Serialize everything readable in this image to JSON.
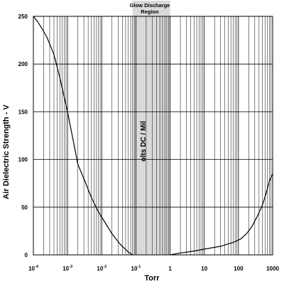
{
  "chart_data": {
    "type": "line",
    "xscale": "log",
    "xlim": [
      0.0001,
      1000
    ],
    "ylim": [
      0,
      250
    ],
    "grid": true,
    "xlabel": "Torr",
    "ylabel": "Air Dielectric Strength - V",
    "inner_label": "olts DC / Mil",
    "shaded_region": {
      "label_line1": "Glow Discharge",
      "label_line2": "Region",
      "x_range": [
        0.08,
        1
      ]
    },
    "x_ticks": [
      {
        "base": "10",
        "exp": "-4",
        "value": 0.0001
      },
      {
        "base": "10",
        "exp": "-3",
        "value": 0.001
      },
      {
        "base": "10",
        "exp": "-2",
        "value": 0.01
      },
      {
        "base": "10",
        "exp": "-1",
        "value": 0.1
      },
      {
        "base": "1",
        "exp": "",
        "value": 1
      },
      {
        "base": "10",
        "exp": "",
        "value": 10
      },
      {
        "base": "100",
        "exp": "",
        "value": 100
      },
      {
        "base": "1000",
        "exp": "",
        "value": 1000
      }
    ],
    "y_ticks": [
      0,
      50,
      100,
      150,
      200,
      250
    ],
    "series": [
      {
        "points": [
          [
            0.0001,
            250
          ],
          [
            0.00013,
            245
          ],
          [
            0.00018,
            237
          ],
          [
            0.00025,
            228
          ],
          [
            0.0004,
            210
          ],
          [
            0.0006,
            185
          ],
          [
            0.001,
            150
          ],
          [
            0.0015,
            118
          ],
          [
            0.002,
            95
          ],
          [
            0.003,
            80
          ],
          [
            0.005,
            60
          ],
          [
            0.008,
            45
          ],
          [
            0.012,
            35
          ],
          [
            0.02,
            22
          ],
          [
            0.035,
            11
          ],
          [
            0.06,
            3
          ],
          [
            0.08,
            0
          ]
        ]
      },
      {
        "points": [
          [
            1,
            0
          ],
          [
            2,
            2
          ],
          [
            5,
            4
          ],
          [
            10,
            6
          ],
          [
            30,
            9
          ],
          [
            70,
            13
          ],
          [
            120,
            17
          ],
          [
            180,
            23
          ],
          [
            250,
            30
          ],
          [
            350,
            40
          ],
          [
            500,
            52
          ],
          [
            650,
            65
          ],
          [
            800,
            77
          ],
          [
            1000,
            85
          ]
        ]
      }
    ]
  }
}
